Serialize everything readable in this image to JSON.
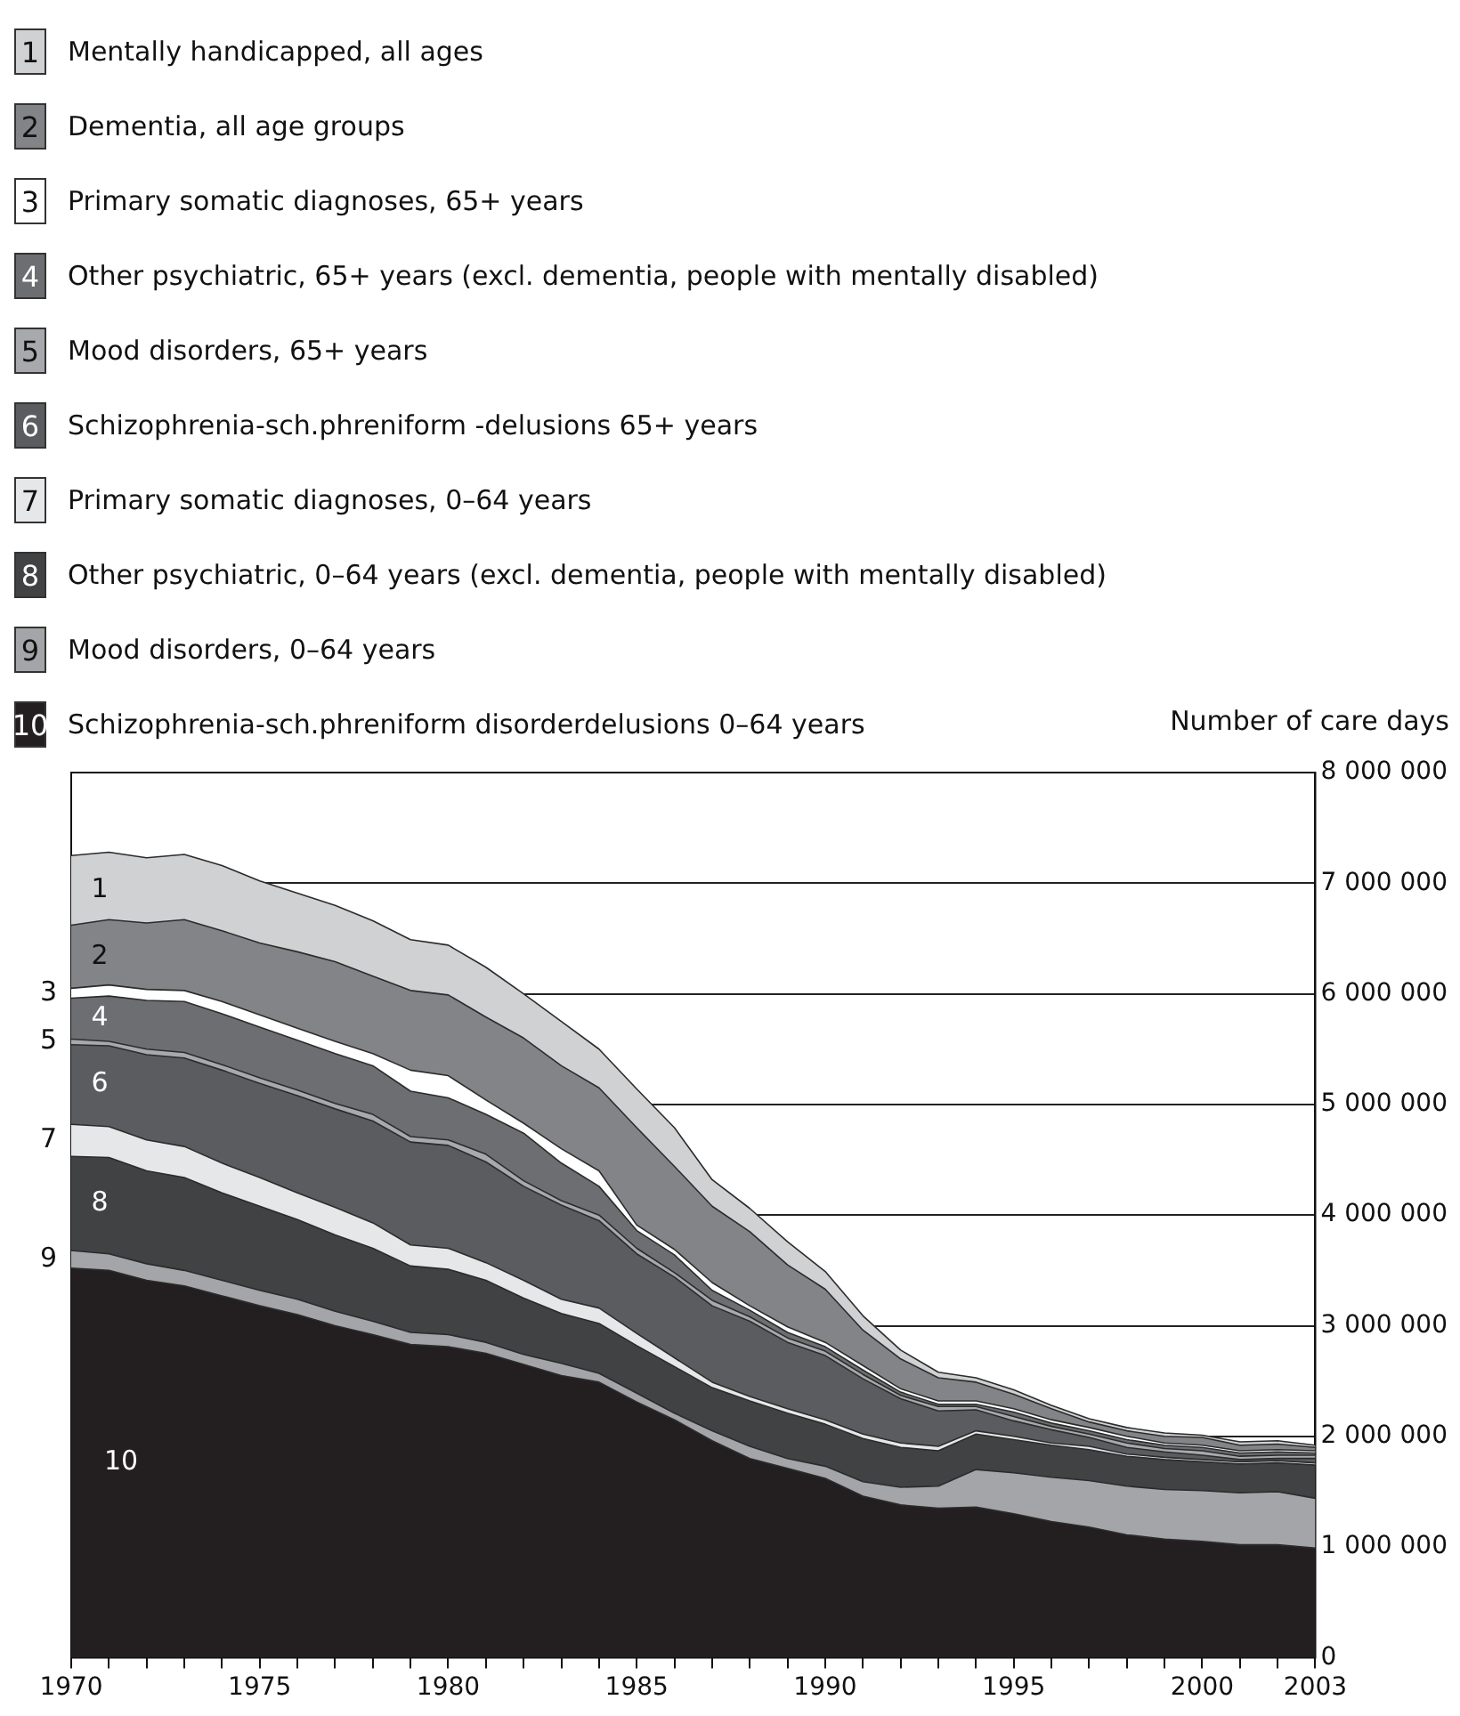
{
  "chart_data": {
    "type": "area",
    "stacked": true,
    "ylabel": "Number of care days",
    "legend": "top left",
    "grid": "y",
    "x": [
      1970,
      1971,
      1972,
      1973,
      1974,
      1975,
      1976,
      1977,
      1978,
      1979,
      1980,
      1981,
      1982,
      1983,
      1984,
      1985,
      1986,
      1987,
      1988,
      1989,
      1990,
      1991,
      1992,
      1993,
      1994,
      1995,
      1996,
      1997,
      1998,
      1999,
      2000,
      2001,
      2002,
      2003
    ],
    "xlim": [
      1970,
      2003
    ],
    "xticks": [
      1970,
      {
        "value": 1971,
        "label": null
      },
      {
        "value": 1972,
        "label": null
      },
      {
        "value": 1973,
        "label": null
      },
      {
        "value": 1974,
        "label": null
      },
      1975,
      {
        "value": 1976,
        "label": null
      },
      {
        "value": 1977,
        "label": null
      },
      {
        "value": 1978,
        "label": null
      },
      {
        "value": 1979,
        "label": null
      },
      1980,
      {
        "value": 1981,
        "label": null
      },
      {
        "value": 1982,
        "label": null
      },
      {
        "value": 1983,
        "label": null
      },
      {
        "value": 1984,
        "label": null
      },
      1985,
      {
        "value": 1986,
        "label": null
      },
      {
        "value": 1987,
        "label": null
      },
      {
        "value": 1988,
        "label": null
      },
      {
        "value": 1989,
        "label": null
      },
      1990,
      {
        "value": 1991,
        "label": null
      },
      {
        "value": 1992,
        "label": null
      },
      {
        "value": 1993,
        "label": null
      },
      {
        "value": 1994,
        "label": null
      },
      1995,
      {
        "value": 1996,
        "label": null
      },
      {
        "value": 1997,
        "label": null
      },
      {
        "value": 1998,
        "label": null
      },
      {
        "value": 1999,
        "label": null
      },
      2000,
      {
        "value": 2001,
        "label": null
      },
      {
        "value": 2002,
        "label": null
      },
      2003
    ],
    "ylim": [
      0,
      8000000
    ],
    "yticks": [
      0,
      {
        "value": 1000000,
        "label": "1 000 000"
      },
      {
        "value": 2000000,
        "label": "2 000 000"
      },
      {
        "value": 3000000,
        "label": "3 000 000"
      },
      {
        "value": 4000000,
        "label": "4 000 000"
      },
      {
        "value": 5000000,
        "label": "5 000 000"
      },
      {
        "value": 6000000,
        "label": "6 000 000"
      },
      {
        "value": 7000000,
        "label": "7 000 000"
      },
      {
        "value": 8000000,
        "label": "8 000 000"
      }
    ],
    "series": [
      {
        "name": "Schizophrenia-sch.phreniform disorderdelusions 0–64 years",
        "color": "#231f20",
        "values": [
          3520000,
          3500000,
          3410000,
          3360000,
          3270000,
          3180000,
          3100000,
          3000000,
          2920000,
          2830000,
          2810000,
          2750000,
          2650000,
          2550000,
          2490000,
          2310000,
          2150000,
          1960000,
          1800000,
          1710000,
          1620000,
          1460000,
          1380000,
          1350000,
          1360000,
          1300000,
          1230000,
          1180000,
          1110000,
          1070000,
          1050000,
          1020000,
          1020000,
          990000
        ]
      },
      {
        "name": "Mood disorders, 0–64 years",
        "color": "#a3a5a8",
        "values": [
          160000,
          150000,
          150000,
          140000,
          140000,
          140000,
          140000,
          130000,
          120000,
          110000,
          110000,
          100000,
          90000,
          110000,
          80000,
          80000,
          60000,
          90000,
          110000,
          90000,
          110000,
          130000,
          160000,
          200000,
          340000,
          370000,
          400000,
          420000,
          440000,
          450000,
          460000,
          470000,
          480000,
          450000
        ]
      },
      {
        "name": "Other psychiatric, 0–64 years (excl. dementia, people with mentally disabled)",
        "color": "#414244",
        "values": [
          850000,
          870000,
          840000,
          840000,
          790000,
          760000,
          720000,
          690000,
          660000,
          600000,
          590000,
          560000,
          510000,
          450000,
          450000,
          430000,
          420000,
          390000,
          410000,
          410000,
          380000,
          390000,
          360000,
          320000,
          320000,
          300000,
          290000,
          280000,
          270000,
          270000,
          260000,
          260000,
          260000,
          300000
        ]
      },
      {
        "name": "Primary somatic diagnoses, 0–64 years",
        "color": "#e6e7e8",
        "values": [
          290000,
          280000,
          280000,
          280000,
          270000,
          260000,
          240000,
          250000,
          230000,
          190000,
          190000,
          160000,
          160000,
          130000,
          140000,
          110000,
          80000,
          50000,
          40000,
          40000,
          40000,
          40000,
          40000,
          40000,
          30000,
          30000,
          20000,
          30000,
          20000,
          20000,
          20000,
          20000,
          20000,
          20000
        ]
      },
      {
        "name": "Schizophrenia-sch.phreniform -delusions 65+ years",
        "color": "#5b5c5f",
        "values": [
          720000,
          730000,
          770000,
          800000,
          840000,
          850000,
          880000,
          890000,
          920000,
          930000,
          930000,
          910000,
          850000,
          850000,
          790000,
          720000,
          730000,
          690000,
          680000,
          600000,
          580000,
          500000,
          400000,
          320000,
          190000,
          140000,
          120000,
          80000,
          60000,
          50000,
          40000,
          20000,
          20000,
          40000
        ]
      },
      {
        "name": "Mood disorders, 65+ years",
        "color": "#a7a9ac",
        "values": [
          50000,
          40000,
          50000,
          50000,
          50000,
          50000,
          50000,
          50000,
          60000,
          50000,
          50000,
          70000,
          50000,
          40000,
          50000,
          50000,
          40000,
          50000,
          40000,
          40000,
          40000,
          40000,
          30000,
          40000,
          30000,
          40000,
          30000,
          30000,
          40000,
          30000,
          40000,
          30000,
          30000,
          30000
        ]
      },
      {
        "name": "Other psychiatric, 65+ years (excl. dementia, people with mentally disabled)",
        "color": "#6d6e71",
        "values": [
          370000,
          410000,
          440000,
          460000,
          460000,
          460000,
          450000,
          450000,
          440000,
          410000,
          380000,
          360000,
          430000,
          340000,
          260000,
          160000,
          160000,
          90000,
          60000,
          50000,
          40000,
          40000,
          30000,
          20000,
          20000,
          40000,
          30000,
          30000,
          30000,
          30000,
          30000,
          30000,
          30000,
          20000
        ]
      },
      {
        "name": "Primary somatic diagnoses, 65+ years",
        "color": "#ffffff",
        "values": [
          90000,
          100000,
          100000,
          100000,
          110000,
          110000,
          110000,
          110000,
          110000,
          190000,
          200000,
          130000,
          90000,
          130000,
          140000,
          50000,
          50000,
          70000,
          40000,
          50000,
          40000,
          40000,
          30000,
          30000,
          30000,
          30000,
          30000,
          30000,
          30000,
          20000,
          20000,
          20000,
          20000,
          20000
        ]
      },
      {
        "name": "Dementia, all age groups",
        "color": "#838487",
        "values": [
          570000,
          590000,
          600000,
          640000,
          640000,
          650000,
          690000,
          720000,
          700000,
          720000,
          730000,
          750000,
          770000,
          750000,
          750000,
          880000,
          750000,
          690000,
          670000,
          560000,
          480000,
          320000,
          270000,
          210000,
          170000,
          130000,
          100000,
          50000,
          50000,
          60000,
          70000,
          50000,
          50000,
          30000
        ]
      },
      {
        "name": "Mentally handicapped, all ages",
        "color": "#d0d1d3",
        "values": [
          630000,
          610000,
          590000,
          590000,
          590000,
          560000,
          530000,
          510000,
          500000,
          460000,
          450000,
          450000,
          400000,
          400000,
          350000,
          350000,
          350000,
          240000,
          210000,
          210000,
          160000,
          130000,
          80000,
          50000,
          40000,
          40000,
          30000,
          30000,
          30000,
          30000,
          20000,
          30000,
          30000,
          20000
        ]
      }
    ],
    "annotations": [
      "1",
      "2",
      "3",
      "4",
      "5",
      "6",
      "7",
      "8",
      "9",
      "10"
    ]
  }
}
